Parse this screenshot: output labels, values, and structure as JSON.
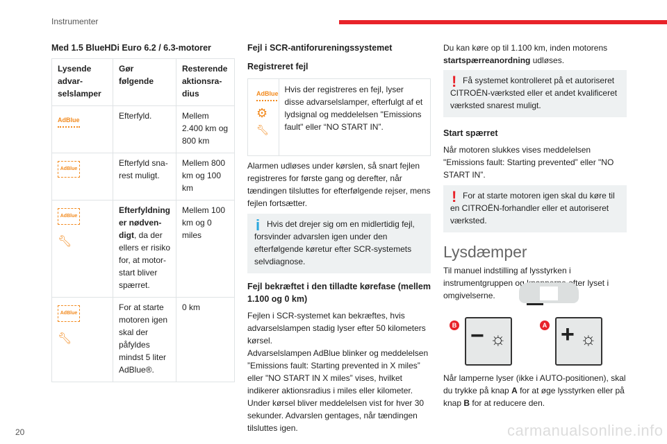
{
  "header": {
    "section": "Instrumenter",
    "accent": "#e8232a"
  },
  "page_number": "20",
  "watermark": "carmanualsonline.info",
  "col1": {
    "heading": "Med 1.5 BlueHDi Euro 6.2 / 6.3-motorer",
    "table": {
      "headers": [
        "Lysende advar-selslamper",
        "Gør følgende",
        "Resterende aktionsra-dius"
      ],
      "rows": [
        {
          "icons": [
            "adblue-icon"
          ],
          "action": "Efterfyld.",
          "range": "Mellem 2.400 km og 800 km"
        },
        {
          "icons": [
            "adblue-flashing-icon"
          ],
          "action": "Efterfyld sna-rest muligt.",
          "range": "Mellem 800 km og 100 km"
        },
        {
          "icons": [
            "adblue-flashing-icon",
            "service-wrench-icon"
          ],
          "action_bold": "Efterfyldning er nødven-digt",
          "action": ", da der ellers er risiko for, at motor-start bliver spærret.",
          "range": "Mellem 100 km og 0 miles"
        },
        {
          "icons": [
            "adblue-flashing-icon",
            "service-wrench-icon"
          ],
          "action": "For at starte motoren igen skal der påfyldes mindst 5 liter AdBlue®.",
          "range": "0 km"
        }
      ],
      "icon_text": "AdBlue"
    }
  },
  "col2": {
    "heading": "Fejl i SCR-antiforureningssystemet",
    "subheading": "Registreret fejl",
    "box_text": "Hvis der registreres en fejl, lyser disse advarselslamper, efterfulgt af et lydsignal og meddelelsen \"Emissions fault\" eller “NO START IN”.",
    "para1": "Alarmen udløses under kørslen, så snart fejlen registreres for første gang og derefter, når tændingen tilsluttes for efterfølgende rejser, mens fejlen fortsætter.",
    "info_note": "Hvis det drejer sig om en midlertidig fejl, forsvinder advarslen igen under den efterfølgende køretur efter SCR-systemets selvdiagnose.",
    "heading2": "Fejl bekræftet i den tilladte kørefase (mellem 1.100 og 0 km)",
    "para2": "Fejlen i SCR-systemet kan bekræftes, hvis advarselslampen stadig lyser efter 50 kilometers kørsel.",
    "para3": "Advarselslampen AdBlue blinker og meddelelsen ”Emissions fault: Starting prevented in X miles” eller \"NO START IN X miles” vises, hvilket indikerer aktionsradius i miles eller kilometer. Under kørsel bliver meddelelsen vist for hver 30 sekunder. Advarslen gentages, når tændingen tilsluttes igen."
  },
  "col3": {
    "para1_pre": "Du kan køre op til 1.100 km, inden motorens ",
    "para1_bold": "startspærreanordning",
    "para1_post": " udløses.",
    "warn1": "Få systemet kontrolleret på et autoriseret CITROËN-værksted eller et andet kvalificeret værksted snarest muligt.",
    "heading": "Start spærret",
    "para2": "Når motoren slukkes vises meddelelsen \"Emissions fault: Starting prevented” eller \"NO START IN”.",
    "warn2": "For at starte motoren igen skal du køre til en CITROËN-forhandler eller et autoriseret værksted.",
    "section_title": "Lysdæmper",
    "para3": "Til manuel indstilling af lysstyrken i instrumentgruppen og knapperne efter lyset i omgivelserne.",
    "button_b": {
      "label": "B",
      "symbol": "−"
    },
    "button_a": {
      "label": "A",
      "symbol": "+"
    },
    "para4_a": "Når lamperne lyser (ikke i AUTO-positionen), skal du trykke på knap ",
    "para4_A": "A",
    "para4_b": " for at øge lysstyrken eller på knap ",
    "para4_B": "B",
    "para4_c": " for at reducere den."
  }
}
